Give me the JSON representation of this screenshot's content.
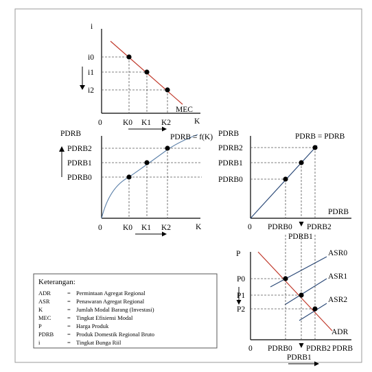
{
  "panel_mec": {
    "y_axis": "i",
    "x_axis": "K",
    "origin": "0",
    "y_ticks": [
      "i0",
      "i1",
      "i2"
    ],
    "x_ticks": [
      "K0",
      "K1",
      "K2"
    ],
    "curve_label": "MEC"
  },
  "panel_production": {
    "y_axis": "PDRB",
    "x_axis": "K",
    "origin": "0",
    "y_ticks": [
      "PDRB0",
      "PDRB1",
      "PDRB2"
    ],
    "x_ticks": [
      "K0",
      "K1",
      "K2"
    ],
    "curve_label": "PDRB = f(K)"
  },
  "panel_identity": {
    "y_axis": "PDRB",
    "x_axis": "PDRB",
    "origin": "0",
    "y_ticks": [
      "PDRB0",
      "PDRB1",
      "PDRB2"
    ],
    "x_ticks": [
      "PDRB0",
      "PDRB1",
      "PDRB2"
    ],
    "curve_label": "PDRB = PDRB"
  },
  "panel_market": {
    "y_axis": "P",
    "x_axis": "PDRB",
    "origin": "0",
    "y_ticks": [
      "P0",
      "P1",
      "P2"
    ],
    "x_ticks": [
      "PDRB0",
      "PDRB1",
      "PDRB2"
    ],
    "supply_labels": [
      "ASR0",
      "ASR1",
      "ASR2"
    ],
    "demand_label": "ADR"
  },
  "legend": {
    "title": "Keterangan:",
    "rows": [
      {
        "abbr": "ADR",
        "eq": "=",
        "desc": "Permintaan Agregat Regional"
      },
      {
        "abbr": "ASR",
        "eq": "=",
        "desc": "Penawaran Agregat Regional"
      },
      {
        "abbr": "K",
        "eq": "=",
        "desc": "Jumlah Modal Barang (Investasi)"
      },
      {
        "abbr": "MEC",
        "eq": "=",
        "desc": "Tingkat Efisiensi Modal"
      },
      {
        "abbr": "P",
        "eq": "=",
        "desc": "Harga Produk"
      },
      {
        "abbr": "PDRB",
        "eq": "=",
        "desc": "Produk Domestik Regional Bruto"
      },
      {
        "abbr": "i",
        "eq": "=",
        "desc": "Tingkat Bunga Riil"
      }
    ]
  }
}
